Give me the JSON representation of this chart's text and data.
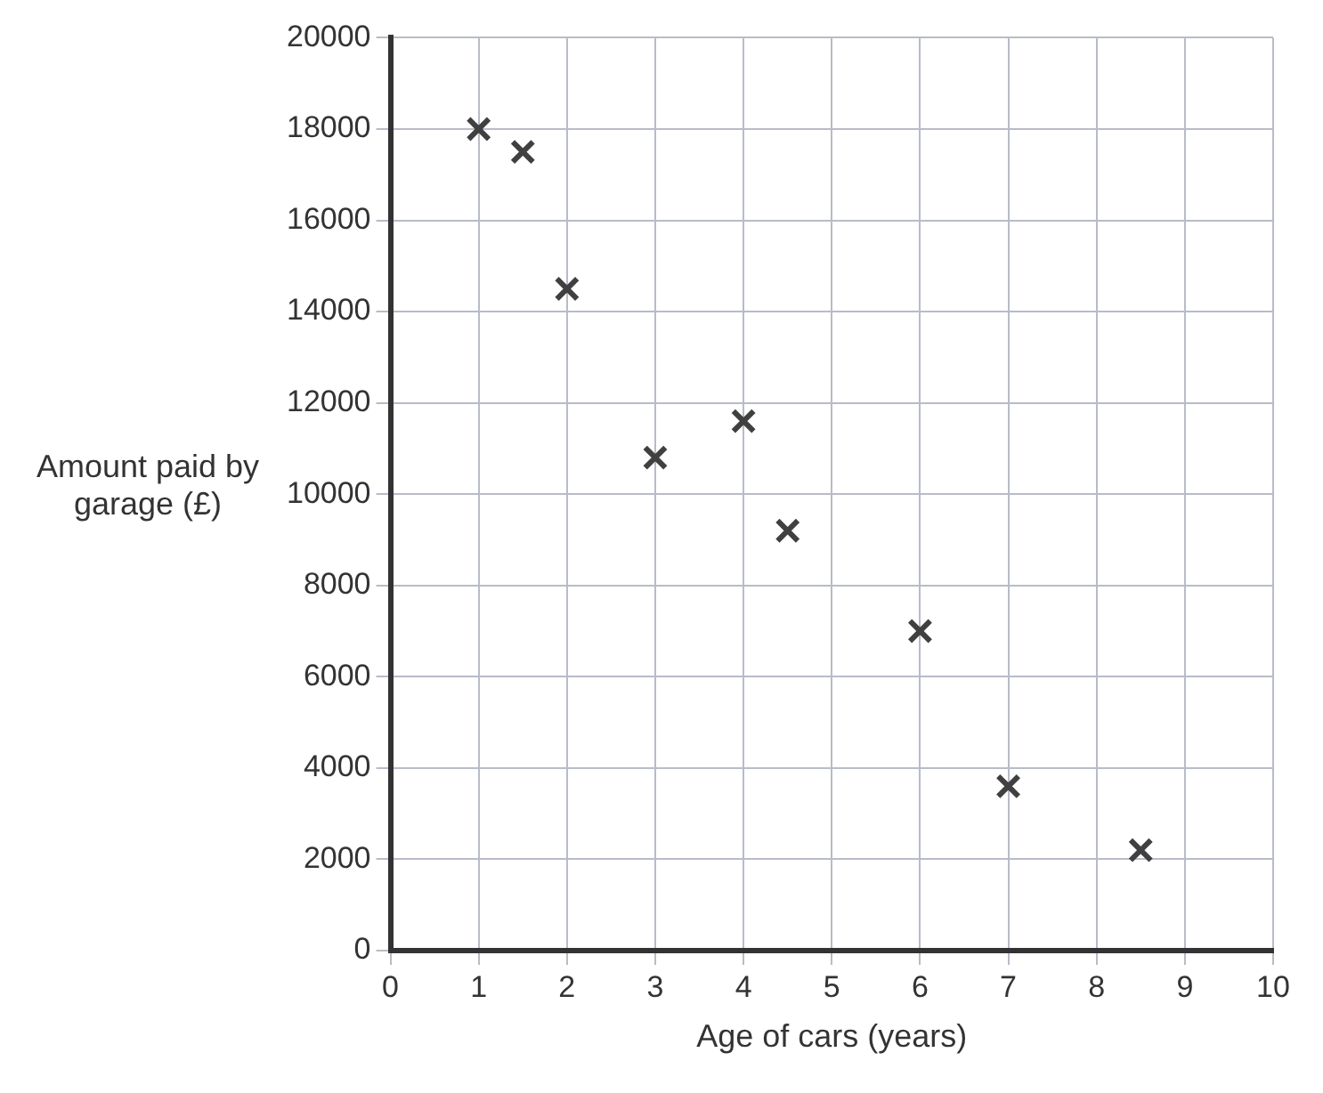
{
  "chart_data": {
    "type": "scatter",
    "xlabel": "Age of cars (years)",
    "ylabel": "Amount paid by garage (£)",
    "x": [
      1,
      1.5,
      2,
      3,
      4,
      4.5,
      6,
      7,
      8.5
    ],
    "series": [
      {
        "color": "#404040",
        "values": [
          18000,
          17500,
          14500,
          10800,
          11600,
          9200,
          7000,
          3600,
          2200
        ]
      }
    ],
    "xlim": [
      0,
      10
    ],
    "xticks": [
      0,
      1,
      2,
      3,
      4,
      5,
      6,
      7,
      8,
      9,
      10
    ],
    "ylim": [
      0,
      20000
    ],
    "yticks": [
      0,
      2000,
      4000,
      6000,
      8000,
      10000,
      12000,
      14000,
      16000,
      18000,
      20000
    ],
    "grid": true,
    "marker": "cross",
    "legend": false
  }
}
